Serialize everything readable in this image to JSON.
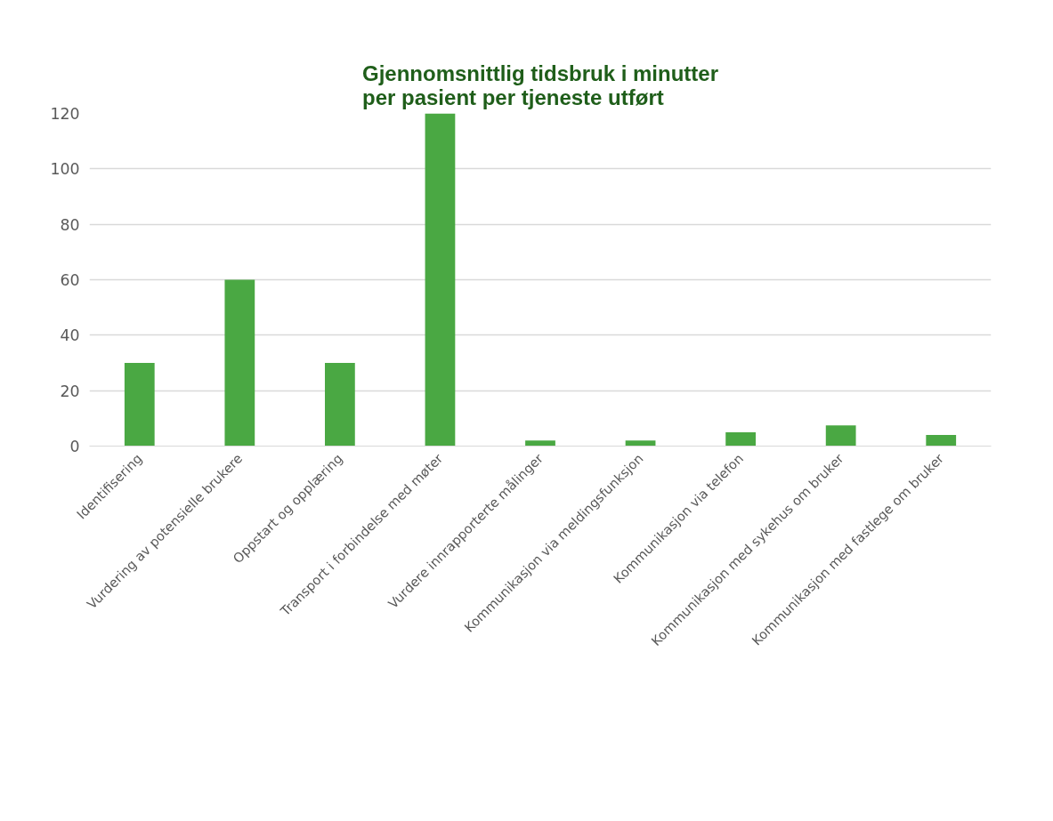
{
  "chart_data": {
    "type": "bar",
    "title": "Gjennomsnittlig tidsbruk i minutter\nper pasient per tjeneste utført",
    "categories": [
      "Identifisering",
      "Vurdering av potensielle brukere",
      "Oppstart og opplæring",
      "Transport i forbindelse med møter",
      "Vurdere innrapporterte målinger",
      "Kommunikasjon via meldingsfunksjon",
      "Kommunikasjon via telefon",
      "Kommunikasjon med sykehus om bruker",
      "Kommunikasjon med fastlege om bruker"
    ],
    "values": [
      30,
      60,
      30,
      120,
      2,
      2,
      5,
      7.5,
      4
    ],
    "color": "#4aa843",
    "ylim": [
      0,
      120
    ],
    "yticks": [
      0,
      20,
      40,
      60,
      80,
      100,
      120
    ],
    "grid": "y"
  }
}
